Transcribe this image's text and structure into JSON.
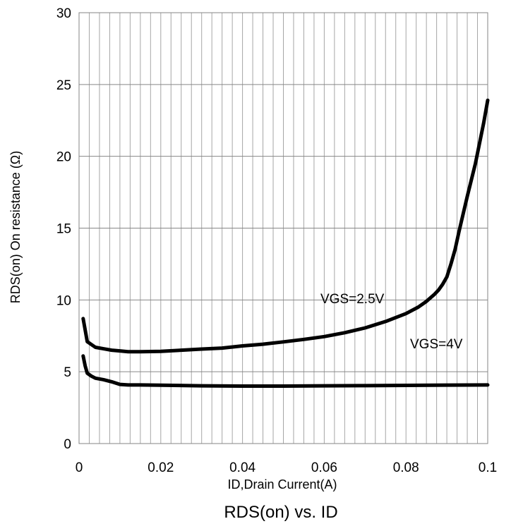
{
  "chart_data": {
    "type": "line",
    "title": "RDS(on) vs. ID",
    "xlabel": "ID,Drain Current(A)",
    "ylabel": "RDS(on) On resistance (Ω)",
    "xlim": [
      0,
      0.1
    ],
    "ylim": [
      0,
      30
    ],
    "x_ticks": [
      "0",
      "0.02",
      "0.04",
      "0.06",
      "0.08",
      "0.1"
    ],
    "y_ticks": [
      "0",
      "5",
      "10",
      "15",
      "20",
      "25",
      "30"
    ],
    "grid": "vertical minor every 0.0025, horizontal major every 5",
    "series": [
      {
        "name": "VGS=2.5V",
        "x": [
          0.001,
          0.0015,
          0.002,
          0.003,
          0.004,
          0.006,
          0.008,
          0.01,
          0.012,
          0.015,
          0.02,
          0.025,
          0.03,
          0.035,
          0.04,
          0.045,
          0.05,
          0.055,
          0.06,
          0.065,
          0.07,
          0.075,
          0.08,
          0.083,
          0.085,
          0.087,
          0.088,
          0.089,
          0.09,
          0.091,
          0.092,
          0.093,
          0.095,
          0.097,
          0.099,
          0.1
        ],
        "y": [
          8.7,
          7.9,
          7.1,
          6.9,
          6.7,
          6.6,
          6.5,
          6.45,
          6.4,
          6.4,
          6.42,
          6.5,
          6.58,
          6.65,
          6.8,
          6.92,
          7.08,
          7.25,
          7.45,
          7.72,
          8.05,
          8.5,
          9.05,
          9.5,
          9.9,
          10.4,
          10.7,
          11.1,
          11.6,
          12.5,
          13.5,
          14.8,
          17.2,
          19.5,
          22.3,
          23.9
        ]
      },
      {
        "name": "VGS=4V",
        "x": [
          0.001,
          0.0015,
          0.002,
          0.003,
          0.004,
          0.006,
          0.008,
          0.01,
          0.012,
          0.015,
          0.02,
          0.03,
          0.04,
          0.05,
          0.06,
          0.07,
          0.08,
          0.09,
          0.1
        ],
        "y": [
          6.1,
          5.4,
          4.9,
          4.7,
          4.55,
          4.45,
          4.3,
          4.12,
          4.08,
          4.08,
          4.06,
          4.02,
          4.0,
          4.0,
          4.02,
          4.03,
          4.05,
          4.07,
          4.08
        ]
      }
    ]
  }
}
